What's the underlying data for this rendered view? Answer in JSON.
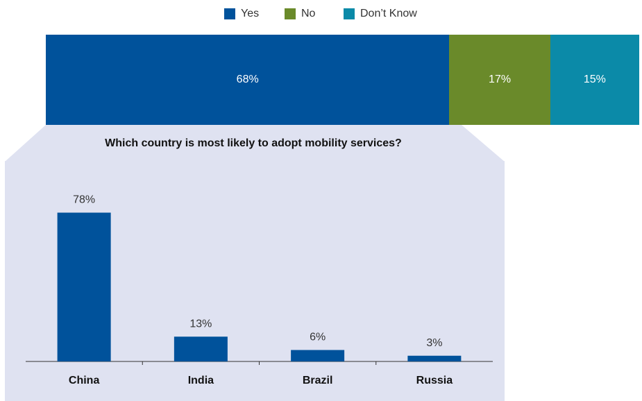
{
  "colors": {
    "yes": "#00529b",
    "no": "#6a8a2a",
    "dont_know": "#0b8aa8",
    "panel": "#dfe2f1",
    "bar": "#00529b"
  },
  "legend": {
    "position": "top-center",
    "items": [
      {
        "label": "Yes",
        "color": "#00529b"
      },
      {
        "label": "No",
        "color": "#6a8a2a"
      },
      {
        "label": "Don’t Know",
        "color": "#0b8aa8"
      }
    ]
  },
  "chart_data": [
    {
      "type": "bar",
      "orientation": "horizontal-stacked",
      "categories": [
        "Yes",
        "No",
        "Don’t Know"
      ],
      "values": [
        68,
        17,
        15
      ],
      "labels": [
        "68%",
        "17%",
        "15%"
      ],
      "xlim": [
        0,
        100
      ]
    },
    {
      "type": "bar",
      "title": "Which country is most likely to adopt mobility services?",
      "categories": [
        "China",
        "India",
        "Brazil",
        "Russia"
      ],
      "values": [
        78,
        13,
        6,
        3
      ],
      "labels": [
        "78%",
        "13%",
        "6%",
        "3%"
      ],
      "ylim": [
        0,
        80
      ],
      "grid": false
    }
  ]
}
